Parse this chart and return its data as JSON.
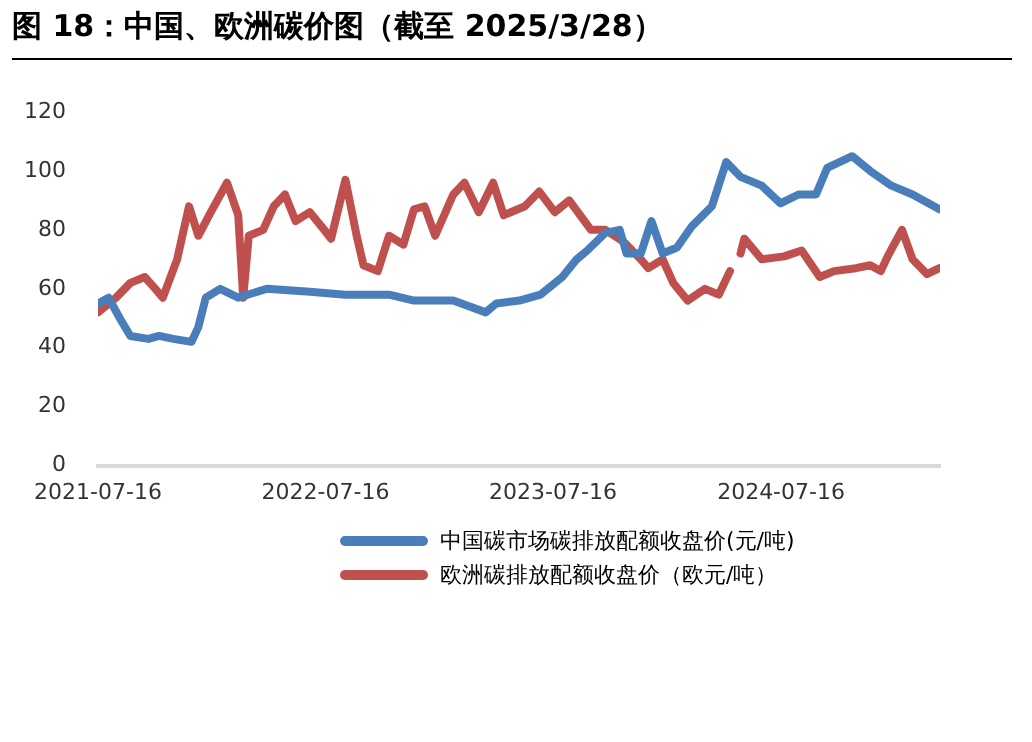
{
  "chart_data": {
    "type": "line",
    "title": "图 18：中国、欧洲碳价图（截至 2025/3/28）",
    "xlim": [
      "2021-07-16",
      "2025-03-28"
    ],
    "xticks": [
      "2021-07-16",
      "2022-07-16",
      "2023-07-16",
      "2024-07-16"
    ],
    "ylim": [
      0,
      120
    ],
    "yticks": [
      0,
      20,
      40,
      60,
      80,
      100,
      120
    ],
    "grid": false,
    "legend": "bottom",
    "marker": "none",
    "line_style": "solid",
    "series": [
      {
        "name": "中国碳市场碳排放配额收盘价(元/吨)",
        "color": "#4a7ebb",
        "x": [
          "2021-07-16",
          "2021-08-02",
          "2021-08-20",
          "2021-09-06",
          "2021-10-05",
          "2021-10-22",
          "2021-11-14",
          "2021-12-13",
          "2021-12-24",
          "2022-01-05",
          "2022-01-28",
          "2022-02-26",
          "2022-04-13",
          "2022-06-21",
          "2022-08-17",
          "2022-10-26",
          "2022-12-05",
          "2023-02-06",
          "2023-03-30",
          "2023-04-16",
          "2023-05-23",
          "2023-06-26",
          "2023-07-31",
          "2023-08-23",
          "2023-09-09",
          "2023-10-08",
          "2023-10-31",
          "2023-11-11",
          "2023-12-04",
          "2023-12-21",
          "2024-01-08",
          "2024-01-31",
          "2024-02-23",
          "2024-03-27",
          "2024-04-19",
          "2024-05-12",
          "2024-06-15",
          "2024-07-15",
          "2024-08-13",
          "2024-09-10",
          "2024-09-28",
          "2024-11-07",
          "2024-12-06",
          "2025-01-09",
          "2025-02-12",
          "2025-03-27"
        ],
        "values": [
          55,
          57,
          50,
          44,
          43,
          44,
          43,
          42,
          47,
          57,
          60,
          57,
          60,
          59,
          58,
          58,
          56,
          56,
          52,
          55,
          56,
          58,
          64,
          70,
          73,
          79,
          80,
          72,
          72,
          83,
          72,
          74,
          81,
          88,
          103,
          98,
          95,
          89,
          92,
          92,
          101,
          105,
          100,
          95,
          92,
          87
        ]
      },
      {
        "name": "欧洲碳排放配额收盘价（欧元/吨）",
        "color": "#c0504d",
        "x": [
          "2021-07-16",
          "2021-08-14",
          "2021-09-06",
          "2021-09-29",
          "2021-10-16",
          "2021-10-28",
          "2021-11-20",
          "2021-12-09",
          "2021-12-24",
          "2022-01-13",
          "2022-02-08",
          "2022-02-26",
          "2022-03-06",
          "2022-03-15",
          "2022-04-07",
          "2022-04-24",
          "2022-05-12",
          "2022-05-29",
          "2022-06-21",
          "2022-07-14",
          "2022-07-25",
          "2022-08-17",
          "2022-09-04",
          "2022-09-15",
          "2022-10-08",
          "2022-10-26",
          "2022-11-18",
          "2022-12-05",
          "2022-12-22",
          "2023-01-08",
          "2023-02-06",
          "2023-02-24",
          "2023-03-19",
          "2023-04-11",
          "2023-04-28",
          "2023-06-01",
          "2023-06-24",
          "2023-07-19",
          "2023-08-11",
          "2023-09-15",
          "2023-10-08",
          "2023-11-06",
          "2023-12-04",
          "2023-12-16",
          "2024-01-08",
          "2024-01-25",
          "2024-02-17",
          "2024-03-16",
          "2024-04-07",
          "2024-04-25",
          "2024-05-03",
          "2024-05-12",
          "2024-05-18",
          "2024-06-15",
          "2024-07-21",
          "2024-08-18",
          "2024-09-16",
          "2024-10-09",
          "2024-11-13",
          "2024-12-06",
          "2024-12-23",
          "2025-01-03",
          "2025-01-26",
          "2025-02-12",
          "2025-03-07",
          "2025-03-27"
        ],
        "values": [
          52,
          57,
          62,
          64,
          60,
          57,
          70,
          88,
          78,
          86,
          96,
          85,
          57,
          78,
          80,
          88,
          92,
          83,
          86,
          80,
          77,
          97,
          78,
          68,
          66,
          78,
          75,
          87,
          88,
          78,
          92,
          96,
          86,
          96,
          85,
          88,
          93,
          86,
          90,
          80,
          80,
          76,
          70,
          67,
          70,
          62,
          56,
          60,
          58,
          66,
          null,
          72,
          77,
          70,
          71,
          73,
          64,
          66,
          67,
          68,
          66,
          71,
          80,
          70,
          65,
          67
        ]
      }
    ]
  }
}
